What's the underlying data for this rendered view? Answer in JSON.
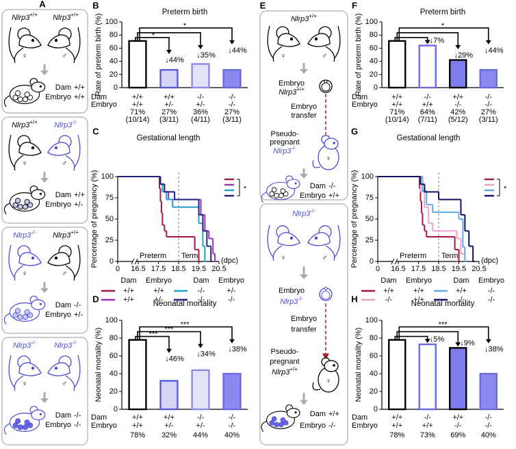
{
  "panel_a": {
    "label": "A",
    "row_labels": [
      "Dam",
      "Embryo"
    ],
    "female": "♀",
    "male": "♂",
    "boxes": [
      {
        "left": {
          "gene": "Nlrp3",
          "genotype": "+/+",
          "color": "#000000"
        },
        "right": {
          "gene": "Nlrp3",
          "genotype": "+/+",
          "color": "#000000"
        },
        "dam": "+/+",
        "embryo": "+/+",
        "dam_color": "#000000",
        "embryo_fill": "#ffffff"
      },
      {
        "left": {
          "gene": "Nlrp3",
          "genotype": "+/+",
          "color": "#000000"
        },
        "right": {
          "gene": "Nlrp3",
          "genotype": "-/-",
          "color": "#4a4ad8"
        },
        "dam": "+/+",
        "embryo": "+/-",
        "dam_color": "#000000",
        "embryo_fill": "#c8c8f2"
      },
      {
        "left": {
          "gene": "Nlrp3",
          "genotype": "-/-",
          "color": "#4a4ad8"
        },
        "right": {
          "gene": "Nlrp3",
          "genotype": "+/+",
          "color": "#000000"
        },
        "dam": "-/-",
        "embryo": "+/-",
        "dam_color": "#4a4ad8",
        "embryo_fill": "#c8c8f2"
      },
      {
        "left": {
          "gene": "Nlrp3",
          "genotype": "-/-",
          "color": "#4a4ad8"
        },
        "right": {
          "gene": "Nlrp3",
          "genotype": "-/-",
          "color": "#4a4ad8"
        },
        "dam": "-/-",
        "embryo": "-/-",
        "dam_color": "#4a4ad8",
        "embryo_fill": "#6868e6"
      }
    ]
  },
  "panel_e": {
    "label": "E",
    "row_labels": [
      "Dam",
      "Embryo"
    ],
    "female": "♀",
    "male": "♂",
    "transfer_color": "#b01c2e",
    "boxes": [
      {
        "parents": {
          "gene": "Nlrp3",
          "genotype": "+/+"
        },
        "parent_color": "#000000",
        "embryo_label": "Embryo",
        "embryo": {
          "gene": "Nlrp3",
          "genotype": "+/+"
        },
        "embryo_color": "#000000",
        "transfer": [
          "Embryo",
          "transfer"
        ],
        "recipient": [
          "Pseudo-",
          "pregnant"
        ],
        "recipient_genotype": {
          "gene": "Nlrp3",
          "genotype": "-/-"
        },
        "recipient_color": "#4a4ad8",
        "dam": "-/-",
        "embryo_genotype": "+/+",
        "embryo_fill": "#ffffff"
      },
      {
        "parents": {
          "gene": "Nlrp3",
          "genotype": "-/-"
        },
        "parent_color": "#4a4ad8",
        "embryo_label": "Embryo",
        "embryo": {
          "gene": "Nlrp3",
          "genotype": "-/-"
        },
        "embryo_color": "#4a4ad8",
        "transfer": [
          "Embryo",
          "transfer"
        ],
        "recipient": [
          "Pseudo-",
          "pregnant"
        ],
        "recipient_genotype": {
          "gene": "Nlrp3",
          "genotype": "+/+"
        },
        "recipient_color": "#000000",
        "dam": "+/+",
        "embryo_genotype": "-/-",
        "embryo_fill": "#6868e6"
      }
    ]
  },
  "chart_data": [
    {
      "type": "bar",
      "label": "B",
      "title": "Preterm birth",
      "ylabel": "Rate of preterm birth (%)",
      "ylim": [
        0,
        100
      ],
      "yticks": [
        0,
        20,
        40,
        60,
        80,
        100
      ],
      "row_labels": [
        "Dam",
        "Embryo"
      ],
      "categories": [
        [
          "+/+",
          "+/+"
        ],
        [
          "+/+",
          "+/-"
        ],
        [
          "-/-",
          "+/-"
        ],
        [
          "-/-",
          "-/-"
        ]
      ],
      "values": [
        71,
        27,
        36,
        27
      ],
      "value_labels": [
        "71%",
        "27%",
        "36%",
        "27%"
      ],
      "counts": [
        "(10/14)",
        "(3/11)",
        "(4/11)",
        "(3/11)"
      ],
      "colors": [
        "#ffffff",
        "#d4d4f4",
        "#e2e2f8",
        "#8a8af0"
      ],
      "edge_colors": [
        "#000000",
        "#5a5ad8",
        "#8a8ae8",
        "#6a6ae0"
      ],
      "changes": [
        null,
        "↓44%",
        "↓35%",
        "↓44%"
      ],
      "significance": [
        null,
        "*",
        null,
        "*"
      ]
    },
    {
      "type": "step",
      "label": "C",
      "title": "Gestational length",
      "ylabel": "Percentage of pregnancy (%)",
      "xlabel": "(dpc)",
      "xlim": [
        0,
        20.5
      ],
      "xticks": [
        0,
        16.5,
        17.5,
        18.5,
        19.5,
        20.5
      ],
      "ylim": [
        0,
        100
      ],
      "yticks": [
        0,
        25,
        50,
        75,
        100
      ],
      "reference_x": 18.5,
      "annotations": [
        "Preterm",
        "Term"
      ],
      "legend_headers": [
        "Dam",
        "Embryo"
      ],
      "significance": "*",
      "series": [
        {
          "dam": "+/+",
          "embryo": "+/+",
          "color": "#a3173f",
          "x": [
            0,
            17.55,
            17.6,
            17.65,
            17.7,
            17.8,
            17.9,
            19.3,
            19.5
          ],
          "values": [
            100,
            86,
            71,
            57,
            43,
            36,
            29,
            14,
            0
          ]
        },
        {
          "dam": "+/+",
          "embryo": "+/-",
          "color": "#9b30c0",
          "x": [
            0,
            17.6,
            17.8,
            18.0,
            19.6,
            19.8,
            20.0,
            20.2,
            20.3
          ],
          "values": [
            100,
            91,
            82,
            73,
            55,
            36,
            27,
            9,
            0
          ]
        },
        {
          "dam": "-/-",
          "embryo": "+/-",
          "color": "#20a0c8",
          "x": [
            0,
            17.6,
            17.7,
            17.9,
            18.2,
            19.5,
            19.7,
            19.8
          ],
          "values": [
            100,
            91,
            82,
            73,
            64,
            45,
            18,
            0
          ]
        },
        {
          "dam": "-/-",
          "embryo": "-/-",
          "color": "#202080",
          "x": [
            0,
            17.6,
            17.8,
            18.3,
            19.5,
            19.7,
            19.9,
            20.1
          ],
          "values": [
            100,
            91,
            82,
            73,
            55,
            36,
            18,
            0
          ]
        }
      ]
    },
    {
      "type": "bar",
      "label": "D",
      "title": "Neonatal mortality",
      "ylabel": "Neonatal mortality (%)",
      "ylim": [
        0,
        100
      ],
      "yticks": [
        0,
        20,
        40,
        60,
        80,
        100
      ],
      "row_labels": [
        "Dam",
        "Embryo"
      ],
      "categories": [
        [
          "+/+",
          "+/+"
        ],
        [
          "+/+",
          "+/-"
        ],
        [
          "-/-",
          "+/-"
        ],
        [
          "-/-",
          "-/-"
        ]
      ],
      "values": [
        78,
        32,
        44,
        40
      ],
      "value_labels": [
        "78%",
        "32%",
        "44%",
        "40%"
      ],
      "colors": [
        "#ffffff",
        "#d4d4f4",
        "#e2e2f8",
        "#8a8af0"
      ],
      "edge_colors": [
        "#000000",
        "#5a5ad8",
        "#8a8ae8",
        "#6a6ae0"
      ],
      "changes": [
        null,
        "↓46%",
        "↓34%",
        "↓38%"
      ],
      "significance": [
        null,
        "***",
        "***",
        "***"
      ]
    },
    {
      "type": "bar",
      "label": "F",
      "title": "Preterm birth",
      "ylabel": "Rate of preterm birth (%)",
      "ylim": [
        0,
        100
      ],
      "yticks": [
        0,
        20,
        40,
        60,
        80,
        100
      ],
      "row_labels": [
        "Dam",
        "Embryo"
      ],
      "categories": [
        [
          "+/+",
          "+/+"
        ],
        [
          "-/-",
          "+/+"
        ],
        [
          "+/+",
          "-/-"
        ],
        [
          "-/-",
          "-/-"
        ]
      ],
      "values": [
        71,
        64,
        42,
        27
      ],
      "value_labels": [
        "71%",
        "64%",
        "42%",
        "27%"
      ],
      "counts": [
        "(10/14)",
        "(7/11)",
        "(5/12)",
        "(3/11)"
      ],
      "colors": [
        "#ffffff",
        "#ffffff",
        "#7c7cee",
        "#8a8af0"
      ],
      "edge_colors": [
        "#000000",
        "#6a6ae8",
        "#000000",
        "#6a6ae0"
      ],
      "changes": [
        null,
        "↓7%",
        "↓29%",
        "↓44%"
      ],
      "significance": [
        null,
        null,
        null,
        "*"
      ]
    },
    {
      "type": "step",
      "label": "G",
      "title": "Gestational length",
      "ylabel": "Percentage of pregnancy (%)",
      "xlabel": "(dpc)",
      "xlim": [
        0,
        20.5
      ],
      "xticks": [
        0,
        16.5,
        17.5,
        18.5,
        19.5,
        20.5
      ],
      "ylim": [
        0,
        100
      ],
      "yticks": [
        0,
        25,
        50,
        75,
        100
      ],
      "reference_x": 18.5,
      "annotations": [
        "Preterm",
        "Term"
      ],
      "legend_headers": [
        "Dam",
        "Embryo"
      ],
      "significance": "*",
      "series": [
        {
          "dam": "+/+",
          "embryo": "+/+",
          "color": "#a3173f",
          "x": [
            0,
            17.55,
            17.6,
            17.65,
            17.7,
            17.8,
            17.9,
            19.3,
            19.5
          ],
          "values": [
            100,
            86,
            71,
            57,
            43,
            36,
            29,
            14,
            0
          ]
        },
        {
          "dam": "-/-",
          "embryo": "+/+",
          "color": "#f0a0d0",
          "x": [
            0,
            17.6,
            17.8,
            18.0,
            18.2,
            19.4,
            19.6,
            19.8
          ],
          "values": [
            100,
            82,
            64,
            45,
            36,
            27,
            9,
            0
          ]
        },
        {
          "dam": "+/+",
          "embryo": "-/-",
          "color": "#60a8e8",
          "x": [
            0,
            17.7,
            17.9,
            18.2,
            19.5,
            19.7,
            19.8
          ],
          "values": [
            100,
            83,
            67,
            58,
            50,
            17,
            0
          ]
        },
        {
          "dam": "-/-",
          "embryo": "-/-",
          "color": "#101060",
          "x": [
            0,
            17.6,
            17.8,
            18.5,
            19.6,
            19.8,
            20.0,
            20.2
          ],
          "values": [
            100,
            91,
            82,
            73,
            55,
            36,
            18,
            0
          ]
        }
      ]
    },
    {
      "type": "bar",
      "label": "H",
      "title": "Neonatal mortality",
      "ylabel": "Neonatal mortality (%)",
      "ylim": [
        0,
        100
      ],
      "yticks": [
        0,
        20,
        40,
        60,
        80,
        100
      ],
      "row_labels": [
        "Dam",
        "Embryo"
      ],
      "categories": [
        [
          "+/+",
          "+/+"
        ],
        [
          "-/-",
          "+/+"
        ],
        [
          "+/+",
          "-/-"
        ],
        [
          "-/-",
          "-/-"
        ]
      ],
      "values": [
        78,
        73,
        69,
        40
      ],
      "value_labels": [
        "78%",
        "73%",
        "69%",
        "40%"
      ],
      "colors": [
        "#ffffff",
        "#ffffff",
        "#7c7cee",
        "#8a8af0"
      ],
      "edge_colors": [
        "#000000",
        "#6a6ae8",
        "#000000",
        "#6a6ae0"
      ],
      "changes": [
        null,
        "↓5%",
        "↓9%",
        "↓38%"
      ],
      "significance": [
        null,
        null,
        null,
        "***"
      ]
    }
  ]
}
